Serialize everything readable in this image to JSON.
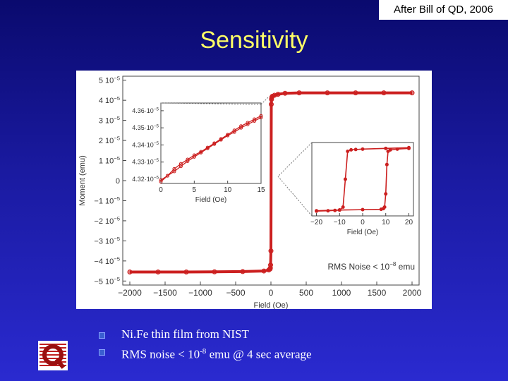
{
  "credit": "After Bill of QD, 2006",
  "title": "Sensitivity",
  "bullets": [
    {
      "text": "Ni.Fe thin film from NIST"
    },
    {
      "pre": "RMS noise < 10",
      "sup": "-8",
      "post": " emu @ 4 sec average"
    }
  ],
  "colors": {
    "data": "#cc2020",
    "title": "#ffff66",
    "background": "#1a1aa0"
  },
  "chart_data": [
    {
      "type": "scatter",
      "name": "main",
      "xlabel": "Field (Oe)",
      "ylabel": "Moment (emu)",
      "xlim": [
        -2100,
        2100
      ],
      "ylim": [
        -5.2e-05,
        5.2e-05
      ],
      "xticks": [
        -2000,
        -1500,
        -1000,
        -500,
        0,
        500,
        1000,
        1500,
        2000
      ],
      "xtick_labels": [
        "−2000",
        "−1500",
        "−1000",
        "−500",
        "0",
        "500",
        "1000",
        "1500",
        "2000"
      ],
      "yticks": [
        5e-05,
        4e-05,
        3e-05,
        2e-05,
        1e-05,
        0,
        -1e-05,
        -2e-05,
        -3e-05,
        -4e-05,
        -5e-05
      ],
      "ytick_labels": [
        "5 10",
        "4 10",
        "3 10",
        "2 10",
        "1 10",
        "0",
        "−1 10",
        "−2 10",
        "−3 10",
        "−4 10",
        "−5 10"
      ],
      "ytick_exps": [
        "−5",
        "−5",
        "−5",
        "−5",
        "−5",
        "",
        "−5",
        "−5",
        "−5",
        "−5",
        "−5"
      ],
      "annotation": "RMS Noise < 10",
      "annotation_exp": "−8",
      "annotation_unit": " emu",
      "series": [
        {
          "x": [
            -2000,
            -1600,
            -1200,
            -800,
            -400,
            -100,
            -30,
            -12,
            -8,
            -5,
            0,
            5,
            8,
            12,
            20,
            50,
            100,
            200,
            400,
            800,
            1200,
            1600,
            2000
          ],
          "y": [
            -4.55e-05,
            -4.55e-05,
            -4.55e-05,
            -4.54e-05,
            -4.53e-05,
            -4.5e-05,
            -4.45e-05,
            -4.4e-05,
            -4.35e-05,
            -4.2e-05,
            -3.5e-05,
            3.8e-05,
            4.05e-05,
            4.15e-05,
            4.2e-05,
            4.25e-05,
            4.3e-05,
            4.35e-05,
            4.37e-05,
            4.37e-05,
            4.37e-05,
            4.37e-05,
            4.37e-05
          ]
        }
      ]
    },
    {
      "type": "line",
      "name": "inset-low-field",
      "xlabel": "Field (Oe)",
      "xlim": [
        0,
        15
      ],
      "ylim": [
        4.3175e-05,
        4.3645e-05
      ],
      "xticks": [
        0,
        5,
        10,
        15
      ],
      "xtick_labels": [
        "0",
        "5",
        "10",
        "15"
      ],
      "yticks": [
        4.36e-05,
        4.35e-05,
        4.34e-05,
        4.33e-05,
        4.32e-05
      ],
      "ytick_labels": [
        "4.36·10",
        "4.35·10",
        "4.34·10",
        "4.33·10",
        "4.32·10"
      ],
      "ytick_exp": "−5",
      "series": [
        {
          "x": [
            0,
            1,
            2,
            3,
            4,
            5,
            6,
            7,
            8,
            9,
            10,
            11,
            12,
            13,
            14,
            15
          ],
          "y": [
            4.3195e-05,
            4.322e-05,
            4.3245e-05,
            4.3275e-05,
            4.3305e-05,
            4.333e-05,
            4.3355e-05,
            4.338e-05,
            4.3405e-05,
            4.343e-05,
            4.3455e-05,
            4.3475e-05,
            4.35e-05,
            4.352e-05,
            4.354e-05,
            4.356e-05
          ]
        },
        {
          "x": [
            0,
            1,
            2,
            3,
            4,
            5,
            6,
            7,
            8,
            9,
            10,
            11,
            12,
            13,
            14,
            15
          ],
          "y": [
            4.3185e-05,
            4.322e-05,
            4.326e-05,
            4.329e-05,
            4.3315e-05,
            4.334e-05,
            4.336e-05,
            4.3385e-05,
            4.341e-05,
            4.3435e-05,
            4.346e-05,
            4.3485e-05,
            4.351e-05,
            4.353e-05,
            4.355e-05,
            4.357e-05
          ]
        }
      ]
    },
    {
      "type": "line",
      "name": "inset-loop",
      "xlabel": "Field (Oe)",
      "xlim": [
        -22,
        22
      ],
      "ylim": [
        -5e-05,
        5e-05
      ],
      "xticks": [
        -20,
        -10,
        0,
        10,
        20
      ],
      "xtick_labels": [
        "−20",
        "−10",
        "0",
        "10",
        "20"
      ],
      "series": [
        {
          "x": [
            20,
            15,
            12,
            11,
            10.5,
            10,
            9.5,
            9,
            8,
            0,
            -10,
            -20
          ],
          "y": [
            4.2e-05,
            4.1e-05,
            4e-05,
            3.8e-05,
            2e-05,
            -2e-05,
            -3.8e-05,
            -4e-05,
            -4.1e-05,
            -4.15e-05,
            -4.2e-05,
            -4.3e-05
          ]
        },
        {
          "x": [
            -20,
            -15,
            -12,
            -10,
            -8.5,
            -7.5,
            -6.5,
            -5,
            -3,
            0,
            10,
            20
          ],
          "y": [
            -4.35e-05,
            -4.3e-05,
            -4.25e-05,
            -4.2e-05,
            -3.8e-05,
            0,
            3.8e-05,
            4e-05,
            4.05e-05,
            4.1e-05,
            4.2e-05,
            4.3e-05
          ]
        }
      ]
    }
  ]
}
